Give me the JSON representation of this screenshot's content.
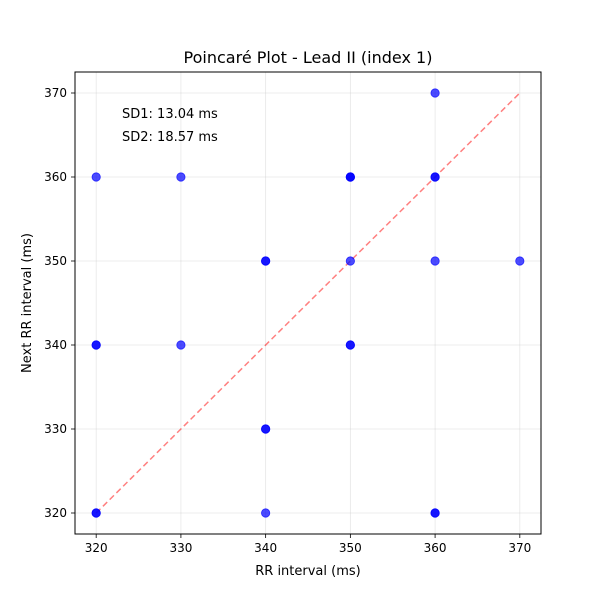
{
  "chart_data": {
    "type": "scatter",
    "title": "Poincaré Plot - Lead II (index 1)",
    "xlabel": "RR interval (ms)",
    "ylabel": "Next RR interval (ms)",
    "xlim": [
      317.5,
      372.5
    ],
    "ylim": [
      317.5,
      372.5
    ],
    "xticks": [
      320,
      330,
      340,
      350,
      360,
      370
    ],
    "yticks": [
      320,
      330,
      340,
      350,
      360,
      370
    ],
    "grid": true,
    "point_color": "#0000ff",
    "point_alpha": 0.7,
    "identity_line": {
      "from": [
        320,
        320
      ],
      "to": [
        370,
        370
      ],
      "color": "#ff0000",
      "alpha": 0.5,
      "style": "dashed"
    },
    "points": [
      {
        "x": 320,
        "y": 360
      },
      {
        "x": 320,
        "y": 340
      },
      {
        "x": 320,
        "y": 340
      },
      {
        "x": 320,
        "y": 320
      },
      {
        "x": 320,
        "y": 320
      },
      {
        "x": 330,
        "y": 360
      },
      {
        "x": 330,
        "y": 340
      },
      {
        "x": 340,
        "y": 350
      },
      {
        "x": 340,
        "y": 350
      },
      {
        "x": 340,
        "y": 330
      },
      {
        "x": 340,
        "y": 330
      },
      {
        "x": 340,
        "y": 320
      },
      {
        "x": 350,
        "y": 360
      },
      {
        "x": 350,
        "y": 360
      },
      {
        "x": 350,
        "y": 360
      },
      {
        "x": 350,
        "y": 350
      },
      {
        "x": 350,
        "y": 340
      },
      {
        "x": 350,
        "y": 340
      },
      {
        "x": 360,
        "y": 370
      },
      {
        "x": 360,
        "y": 360
      },
      {
        "x": 360,
        "y": 360
      },
      {
        "x": 360,
        "y": 350
      },
      {
        "x": 360,
        "y": 320
      },
      {
        "x": 360,
        "y": 320
      },
      {
        "x": 370,
        "y": 350
      }
    ],
    "annotations": [
      {
        "id": "sd1",
        "text": "SD1: 13.04 ms"
      },
      {
        "id": "sd2",
        "text": "SD2: 18.57 ms"
      }
    ]
  }
}
